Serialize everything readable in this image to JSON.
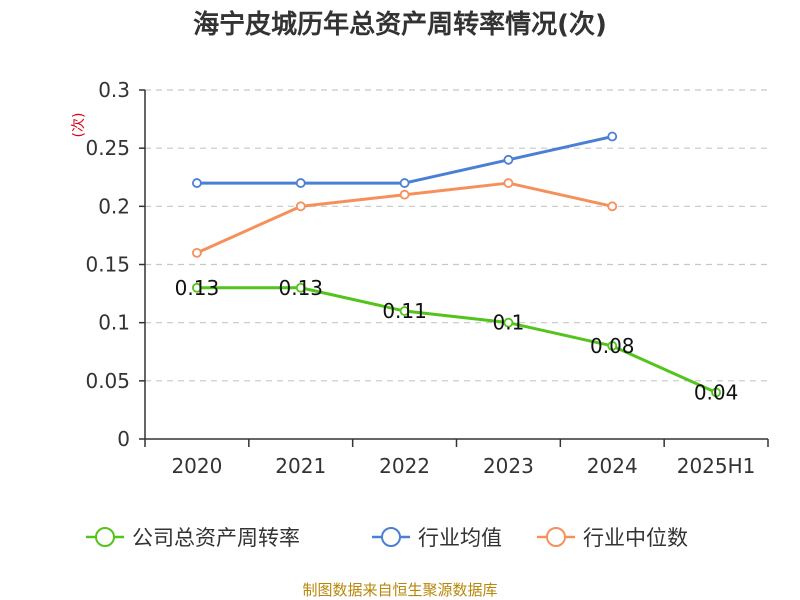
{
  "chart_data": {
    "type": "line",
    "title": "海宁皮城历年总资产周转率情况(次)",
    "ylabel": "(次)",
    "xlabel": "",
    "categories": [
      "2020",
      "2021",
      "2022",
      "2023",
      "2024",
      "2025H1"
    ],
    "ylim": [
      0,
      0.3
    ],
    "yticks": [
      0,
      0.05,
      0.1,
      0.15,
      0.2,
      0.25,
      0.3
    ],
    "ytick_labels": [
      "0",
      "0.05",
      "0.1",
      "0.15",
      "0.2",
      "0.25",
      "0.3"
    ],
    "grid": true,
    "legend_position": "bottom",
    "series": [
      {
        "name": "公司总资产周转率",
        "color": "#52c41a",
        "values": [
          0.13,
          0.13,
          0.11,
          0.1,
          0.08,
          0.04
        ],
        "labels": [
          "0.13",
          "0.13",
          "0.11",
          "0.1",
          "0.08",
          "0.04"
        ],
        "show_labels": true
      },
      {
        "name": "行业均值",
        "color": "#4a7fd6",
        "values": [
          0.22,
          0.22,
          0.22,
          0.24,
          0.26,
          null
        ],
        "show_labels": false
      },
      {
        "name": "行业中位数",
        "color": "#f5905a",
        "values": [
          0.16,
          0.2,
          0.21,
          0.22,
          0.2,
          null
        ],
        "show_labels": false
      }
    ]
  },
  "footer": {
    "source": "制图数据来自恒生聚源数据库"
  }
}
